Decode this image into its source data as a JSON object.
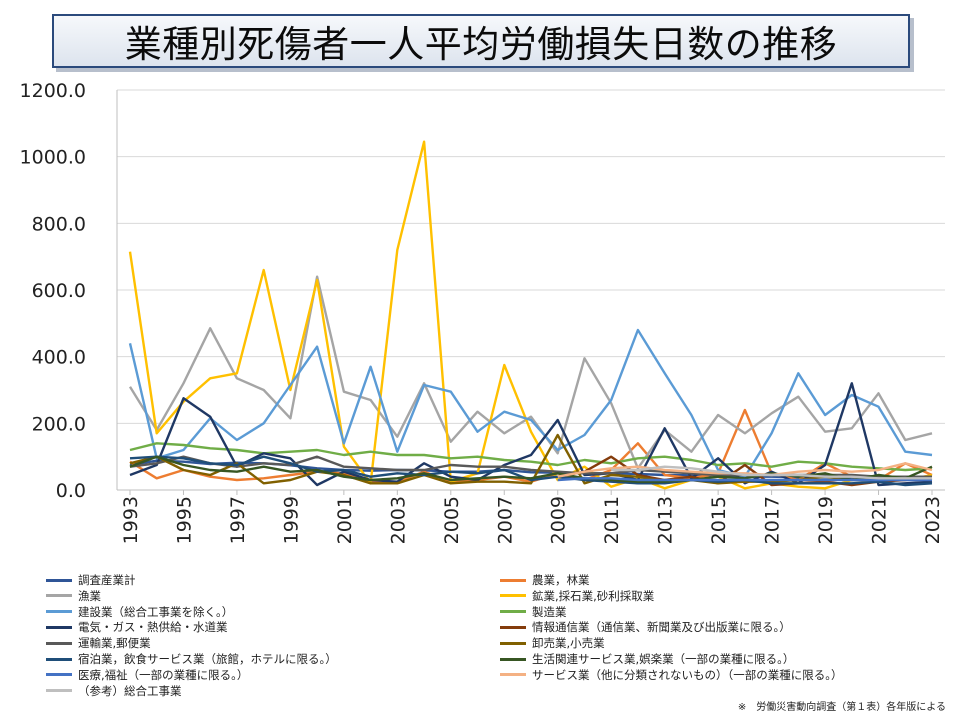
{
  "title": "業種別死傷者一人平均労働損失日数の推移",
  "source_note": "※　労働災害動向調査（第１表）各年版による",
  "chart_data": {
    "type": "line",
    "title": "業種別死傷者一人平均労働損失日数の推移",
    "xlabel": "",
    "ylabel": "",
    "ylim": [
      0,
      1200
    ],
    "yticks": [
      "0.0",
      "200.0",
      "400.0",
      "600.0",
      "800.0",
      "1000.0",
      "1200.0"
    ],
    "xticks": [
      "1993",
      "1995",
      "1997",
      "1999",
      "2001",
      "2003",
      "2005",
      "2007",
      "2009",
      "2011",
      "2013",
      "2015",
      "2017",
      "2019",
      "2021",
      "2023"
    ],
    "x": [
      1993,
      1994,
      1995,
      1996,
      1997,
      1998,
      1999,
      2000,
      2001,
      2002,
      2003,
      2004,
      2005,
      2006,
      2007,
      2008,
      2009,
      2010,
      2011,
      2012,
      2013,
      2014,
      2015,
      2016,
      2017,
      2018,
      2019,
      2020,
      2021,
      2022,
      2023
    ],
    "legend_position": "bottom",
    "series": [
      {
        "name": "調査産業計",
        "color": "#2f5597",
        "values": [
          75,
          88,
          85,
          78,
          82,
          80,
          74,
          65,
          60,
          58,
          60,
          59,
          55,
          55,
          60,
          53,
          52,
          50,
          50,
          48,
          45,
          44,
          42,
          40,
          40,
          38,
          38,
          38,
          36,
          35,
          36
        ]
      },
      {
        "name": "農業，林業",
        "color": "#ed7d31",
        "values": [
          85,
          35,
          60,
          40,
          30,
          35,
          45,
          55,
          50,
          25,
          25,
          55,
          25,
          30,
          40,
          25,
          50,
          30,
          60,
          140,
          45,
          35,
          50,
          240,
          50,
          30,
          80,
          40,
          30,
          80,
          45
        ]
      },
      {
        "name": "漁業",
        "color": "#a5a5a5",
        "values": [
          310,
          180,
          320,
          485,
          335,
          300,
          215,
          640,
          295,
          270,
          160,
          320,
          145,
          235,
          170,
          220,
          110,
          395,
          260,
          65,
          180,
          115,
          225,
          170,
          230,
          280,
          175,
          185,
          290,
          150,
          170
        ]
      },
      {
        "name": "鉱業,採石業,砂利採取業",
        "color": "#ffc000",
        "values": [
          715,
          170,
          265,
          335,
          350,
          660,
          300,
          630,
          130,
          20,
          720,
          1045,
          25,
          50,
          375,
          175,
          30,
          70,
          10,
          35,
          5,
          30,
          40,
          5,
          20,
          10,
          5,
          30,
          40,
          30,
          45
        ]
      },
      {
        "name": "建設業（総合工事業を除く。）",
        "color": "#5b9bd5",
        "values": [
          440,
          95,
          120,
          215,
          150,
          200,
          315,
          430,
          140,
          370,
          115,
          315,
          295,
          175,
          235,
          210,
          120,
          165,
          270,
          480,
          350,
          225,
          60,
          40,
          170,
          350,
          225,
          285,
          250,
          115,
          105
        ]
      },
      {
        "name": "製造業",
        "color": "#70ad47",
        "values": [
          120,
          140,
          135,
          125,
          120,
          110,
          115,
          120,
          105,
          115,
          105,
          105,
          95,
          100,
          90,
          85,
          75,
          90,
          80,
          95,
          100,
          90,
          75,
          80,
          70,
          85,
          80,
          70,
          65,
          60,
          65
        ]
      },
      {
        "name": "電気・ガス・熱供給・水道業",
        "color": "#1f3864",
        "values": [
          45,
          75,
          275,
          220,
          70,
          110,
          95,
          15,
          55,
          30,
          25,
          80,
          40,
          30,
          75,
          105,
          210,
          45,
          50,
          30,
          185,
          35,
          95,
          20,
          55,
          20,
          75,
          320,
          15,
          20,
          25
        ]
      },
      {
        "name": "情報通信業（通信業、新聞業及び出版業に限る。）",
        "color": "#843c0c",
        "values": [
          null,
          null,
          null,
          null,
          null,
          null,
          null,
          null,
          null,
          null,
          null,
          null,
          null,
          null,
          null,
          null,
          40,
          55,
          100,
          45,
          30,
          40,
          20,
          75,
          15,
          20,
          25,
          15,
          25,
          30,
          35
        ]
      },
      {
        "name": "運輸業,郵便業",
        "color": "#595959",
        "values": [
          70,
          80,
          100,
          80,
          70,
          80,
          75,
          100,
          70,
          65,
          60,
          60,
          75,
          70,
          70,
          60,
          55,
          50,
          50,
          60,
          55,
          50,
          45,
          45,
          45,
          45,
          45,
          45,
          40,
          40,
          40
        ]
      },
      {
        "name": "卸売業,小売業",
        "color": "#806000",
        "values": [
          80,
          100,
          60,
          45,
          80,
          20,
          30,
          55,
          45,
          20,
          20,
          45,
          20,
          25,
          25,
          20,
          165,
          20,
          45,
          40,
          25,
          30,
          20,
          25,
          25,
          30,
          40,
          30,
          30,
          35,
          30
        ]
      },
      {
        "name": "宿泊業，飲食サービス業（旅館，ホテルに限る。）",
        "color": "#1f4e79",
        "values": [
          95,
          100,
          95,
          80,
          75,
          100,
          80,
          55,
          60,
          40,
          50,
          45,
          55,
          50,
          60,
          30,
          40,
          30,
          25,
          20,
          20,
          30,
          25,
          30,
          20,
          20,
          20,
          20,
          25,
          15,
          20
        ]
      },
      {
        "name": "生活関連サービス業,娯楽業（一部の業種に限る。）",
        "color": "#375623",
        "values": [
          70,
          100,
          75,
          60,
          55,
          70,
          55,
          60,
          40,
          30,
          35,
          50,
          30,
          35,
          40,
          35,
          50,
          35,
          30,
          25,
          25,
          30,
          40,
          35,
          50,
          40,
          50,
          30,
          45,
          35,
          70
        ]
      },
      {
        "name": "医療,福祉（一部の業種に限る。）",
        "color": "#4472c4",
        "values": [
          null,
          null,
          null,
          null,
          null,
          null,
          null,
          null,
          null,
          null,
          null,
          null,
          null,
          null,
          null,
          null,
          30,
          35,
          35,
          30,
          30,
          30,
          30,
          30,
          30,
          30,
          30,
          30,
          30,
          30,
          30
        ]
      },
      {
        "name": "サービス業（他に分類されないもの）（一部の業種に限る。）",
        "color": "#f4b183",
        "values": [
          null,
          null,
          null,
          null,
          null,
          null,
          null,
          null,
          null,
          null,
          null,
          null,
          null,
          null,
          null,
          null,
          40,
          55,
          65,
          70,
          60,
          55,
          50,
          50,
          45,
          55,
          60,
          55,
          60,
          80,
          60
        ]
      },
      {
        "name": "（参考）総合工事業",
        "color": "#bfbfbf",
        "values": [
          null,
          null,
          null,
          null,
          null,
          null,
          null,
          null,
          null,
          null,
          null,
          null,
          null,
          null,
          null,
          null,
          null,
          null,
          60,
          60,
          70,
          65,
          55,
          45,
          45,
          45,
          40,
          40,
          35,
          35,
          35
        ]
      }
    ]
  }
}
